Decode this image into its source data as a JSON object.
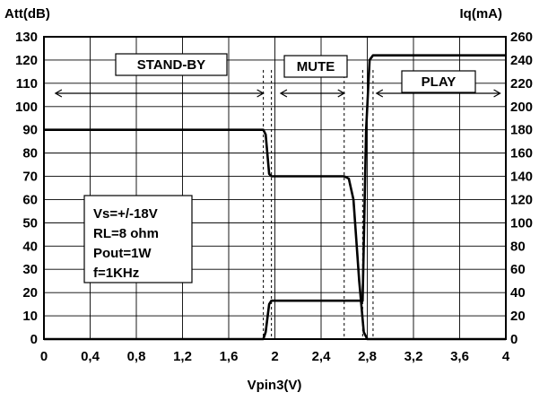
{
  "chart_data": {
    "type": "line",
    "xlabel": "Vpin3(V)",
    "ylabel_left": "Att(dB)",
    "ylabel_right": "Iq(mA)",
    "xlim": [
      0,
      4
    ],
    "ylim_left": [
      0,
      130
    ],
    "ylim_right": [
      0,
      260
    ],
    "grid": true,
    "x_ticks": [
      "0",
      "0,4",
      "0,8",
      "1,2",
      "1,6",
      "2",
      "2,4",
      "2,8",
      "3,2",
      "3,6",
      "4"
    ],
    "y_ticks_left": [
      "0",
      "10",
      "20",
      "30",
      "40",
      "50",
      "60",
      "70",
      "80",
      "90",
      "100",
      "110",
      "120",
      "130"
    ],
    "y_ticks_right": [
      "0",
      "20",
      "40",
      "60",
      "80",
      "100",
      "120",
      "140",
      "160",
      "180",
      "200",
      "220",
      "240",
      "260"
    ],
    "series": [
      {
        "axis": "left",
        "points": [
          [
            0,
            90
          ],
          [
            1.9,
            90
          ],
          [
            1.92,
            88
          ],
          [
            1.95,
            71
          ],
          [
            1.97,
            70
          ],
          [
            2.6,
            70
          ],
          [
            2.64,
            69
          ],
          [
            2.68,
            60
          ],
          [
            2.73,
            25
          ],
          [
            2.77,
            3
          ],
          [
            2.8,
            0
          ],
          [
            4,
            0
          ]
        ]
      },
      {
        "axis": "right",
        "points": [
          [
            0,
            0
          ],
          [
            1.9,
            0
          ],
          [
            1.92,
            6
          ],
          [
            1.95,
            30
          ],
          [
            1.97,
            33
          ],
          [
            2.76,
            33
          ],
          [
            2.79,
            180
          ],
          [
            2.82,
            240
          ],
          [
            2.85,
            244
          ],
          [
            4,
            244
          ]
        ]
      }
    ],
    "regions": [
      {
        "label": "STAND-BY",
        "x_range": [
          0.1,
          1.9
        ]
      },
      {
        "label": "MUTE",
        "x_range": [
          2.05,
          2.6
        ]
      },
      {
        "label": "PLAY",
        "x_range": [
          2.88,
          3.95
        ]
      }
    ],
    "threshold_x": [
      1.9,
      1.97,
      2.6,
      2.76,
      2.85
    ],
    "annotation_lines": [
      "Vs=+/-18V",
      "RL=8 ohm",
      "Pout=1W",
      "f=1KHz"
    ]
  }
}
